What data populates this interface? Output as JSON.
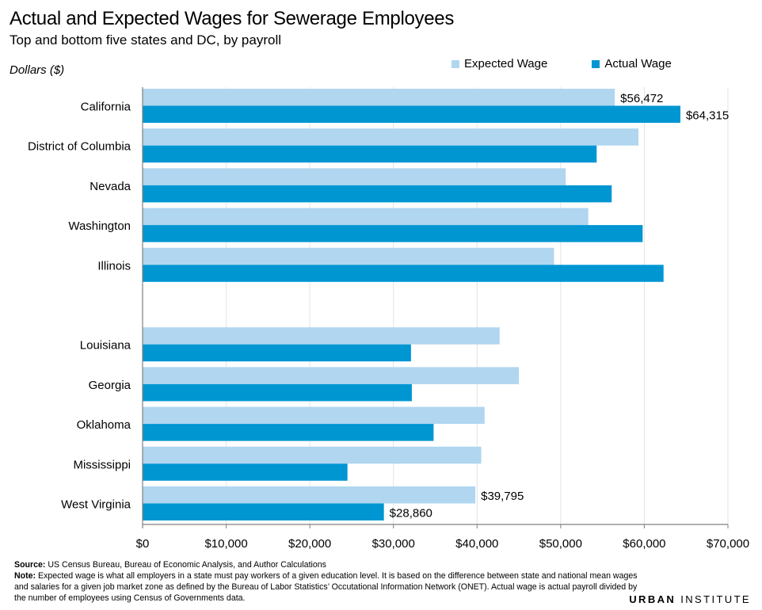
{
  "header": {
    "title": "Actual and Expected Wages for Sewerage Employees",
    "subtitle": "Top and bottom five states and DC, by payroll",
    "unit": "Dollars ($)"
  },
  "legend": {
    "expected_label": "Expected Wage",
    "actual_label": "Actual Wage"
  },
  "colors": {
    "expected": "#B0D6F0",
    "actual": "#0096D2",
    "axis": "#808080",
    "grid": "#e3e3e3"
  },
  "chart_data": {
    "type": "bar",
    "orientation": "horizontal",
    "categories": [
      "California",
      "District of Columbia",
      "Nevada",
      "Washington",
      "Illinois",
      "",
      "Louisiana",
      "Georgia",
      "Oklahoma",
      "Mississippi",
      "West Virginia"
    ],
    "series": [
      {
        "name": "Expected Wage",
        "values": [
          56472,
          59300,
          50600,
          53300,
          49200,
          null,
          42700,
          45000,
          40900,
          40500,
          39795
        ]
      },
      {
        "name": "Actual Wage",
        "values": [
          64315,
          54300,
          56100,
          59800,
          62300,
          null,
          32100,
          32200,
          34800,
          24500,
          28860
        ]
      }
    ],
    "data_labels": [
      {
        "series": "Expected Wage",
        "category": "California",
        "text": "$56,472"
      },
      {
        "series": "Actual Wage",
        "category": "California",
        "text": "$64,315"
      },
      {
        "series": "Expected Wage",
        "category": "West Virginia",
        "text": "$39,795"
      },
      {
        "series": "Actual Wage",
        "category": "West Virginia",
        "text": "$28,860"
      }
    ],
    "xlim": [
      0,
      70000
    ],
    "x_ticks": [
      0,
      10000,
      20000,
      30000,
      40000,
      50000,
      60000,
      70000
    ],
    "x_tick_labels": [
      "$0",
      "$10,000",
      "$20,000",
      "$30,000",
      "$40,000",
      "$50,000",
      "$60,000",
      "$70,000"
    ],
    "grid": true,
    "legend_position": "top-right"
  },
  "footer": {
    "source_label": "Source:",
    "source_text": " US Census Bureau, Bureau of Economic Analysis, and Author Calculations",
    "note_label": "Note:",
    "note_text": " Expected wage is what all employers in a state must pay workers of a given education level.  It is based on the difference between state and national mean wages and salaries for a given job market zone as defined by the Bureau of Labor Statistics’ Occutational Information Network (ONET). Actual wage is actual payroll divided by the number of employees using Census of Governments data."
  },
  "brand": {
    "part1": "URBAN",
    "part2": " INSTITUTE"
  }
}
